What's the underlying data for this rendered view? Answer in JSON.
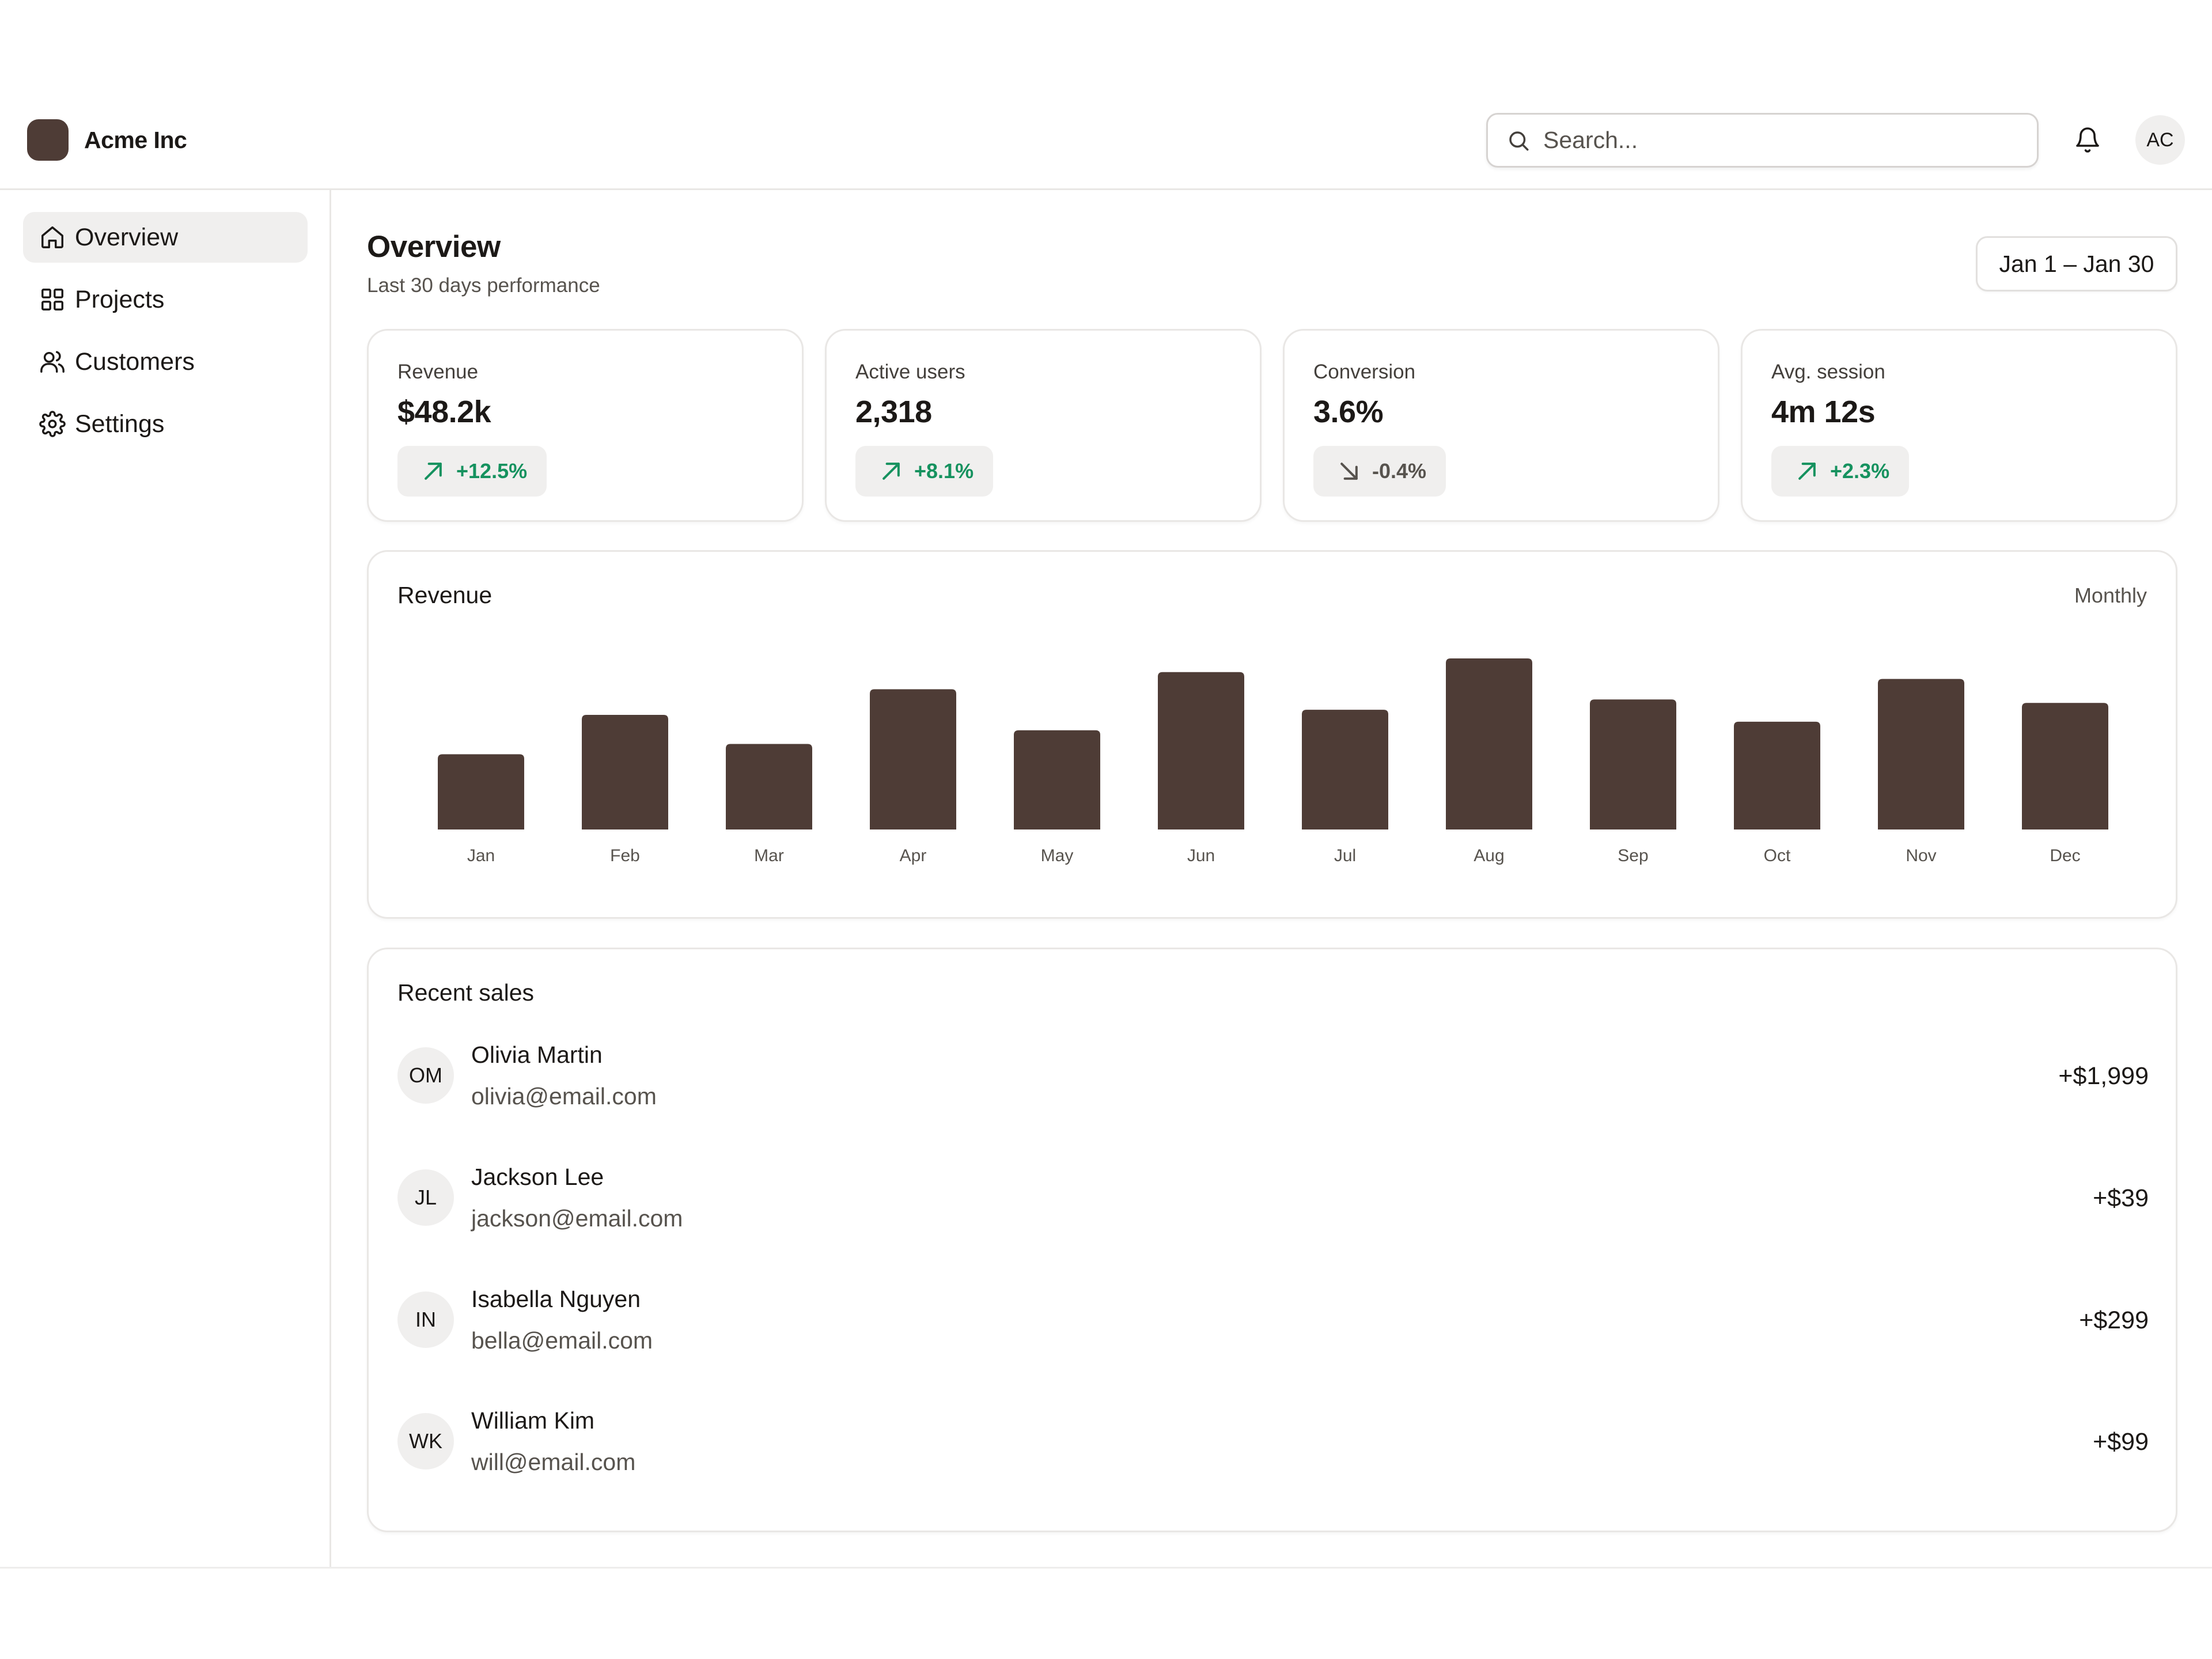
{
  "brand": {
    "name": "Acme Inc"
  },
  "search": {
    "placeholder": "Search..."
  },
  "user": {
    "initials": "AC"
  },
  "sidebar": {
    "items": [
      {
        "label": "Overview",
        "icon": "home-icon",
        "active": true
      },
      {
        "label": "Projects",
        "icon": "grid-icon"
      },
      {
        "label": "Customers",
        "icon": "users-icon"
      },
      {
        "label": "Settings",
        "icon": "gear-icon"
      }
    ]
  },
  "page": {
    "title": "Overview",
    "subtitle": "Last 30 days performance",
    "date_range": "Jan 1 – Jan 30"
  },
  "stats": [
    {
      "label": "Revenue",
      "value": "$48.2k",
      "change": "+12.5%",
      "trend": "up"
    },
    {
      "label": "Active users",
      "value": "2,318",
      "change": "+8.1%",
      "trend": "up"
    },
    {
      "label": "Conversion",
      "value": "3.6%",
      "change": "-0.4%",
      "trend": "down"
    },
    {
      "label": "Avg. session",
      "value": "4m 12s",
      "change": "+2.3%",
      "trend": "up"
    }
  ],
  "revenue_chart": {
    "title": "Revenue",
    "period": "Monthly"
  },
  "chart_data": {
    "type": "bar",
    "title": "Revenue",
    "categories": [
      "Jan",
      "Feb",
      "Mar",
      "Apr",
      "May",
      "Jun",
      "Jul",
      "Aug",
      "Sep",
      "Oct",
      "Nov",
      "Dec"
    ],
    "values": [
      44,
      67,
      50,
      82,
      58,
      92,
      70,
      100,
      76,
      63,
      88,
      74
    ],
    "ylim": [
      0,
      100
    ],
    "grid": false,
    "color": "#4e3c36"
  },
  "recent_sales": {
    "title": "Recent sales",
    "rows": [
      {
        "initials": "OM",
        "name": "Olivia Martin",
        "email": "olivia@email.com",
        "amount": "+$1,999"
      },
      {
        "initials": "JL",
        "name": "Jackson Lee",
        "email": "jackson@email.com",
        "amount": "+$39"
      },
      {
        "initials": "IN",
        "name": "Isabella Nguyen",
        "email": "bella@email.com",
        "amount": "+$299"
      },
      {
        "initials": "WK",
        "name": "William Kim",
        "email": "will@email.com",
        "amount": "+$99"
      }
    ]
  },
  "colors": {
    "accent": "#4e3c36",
    "positive": "#16925f",
    "neutral": "#57534e",
    "border": "#e9e7e5",
    "muted_bg": "#f0efee"
  }
}
